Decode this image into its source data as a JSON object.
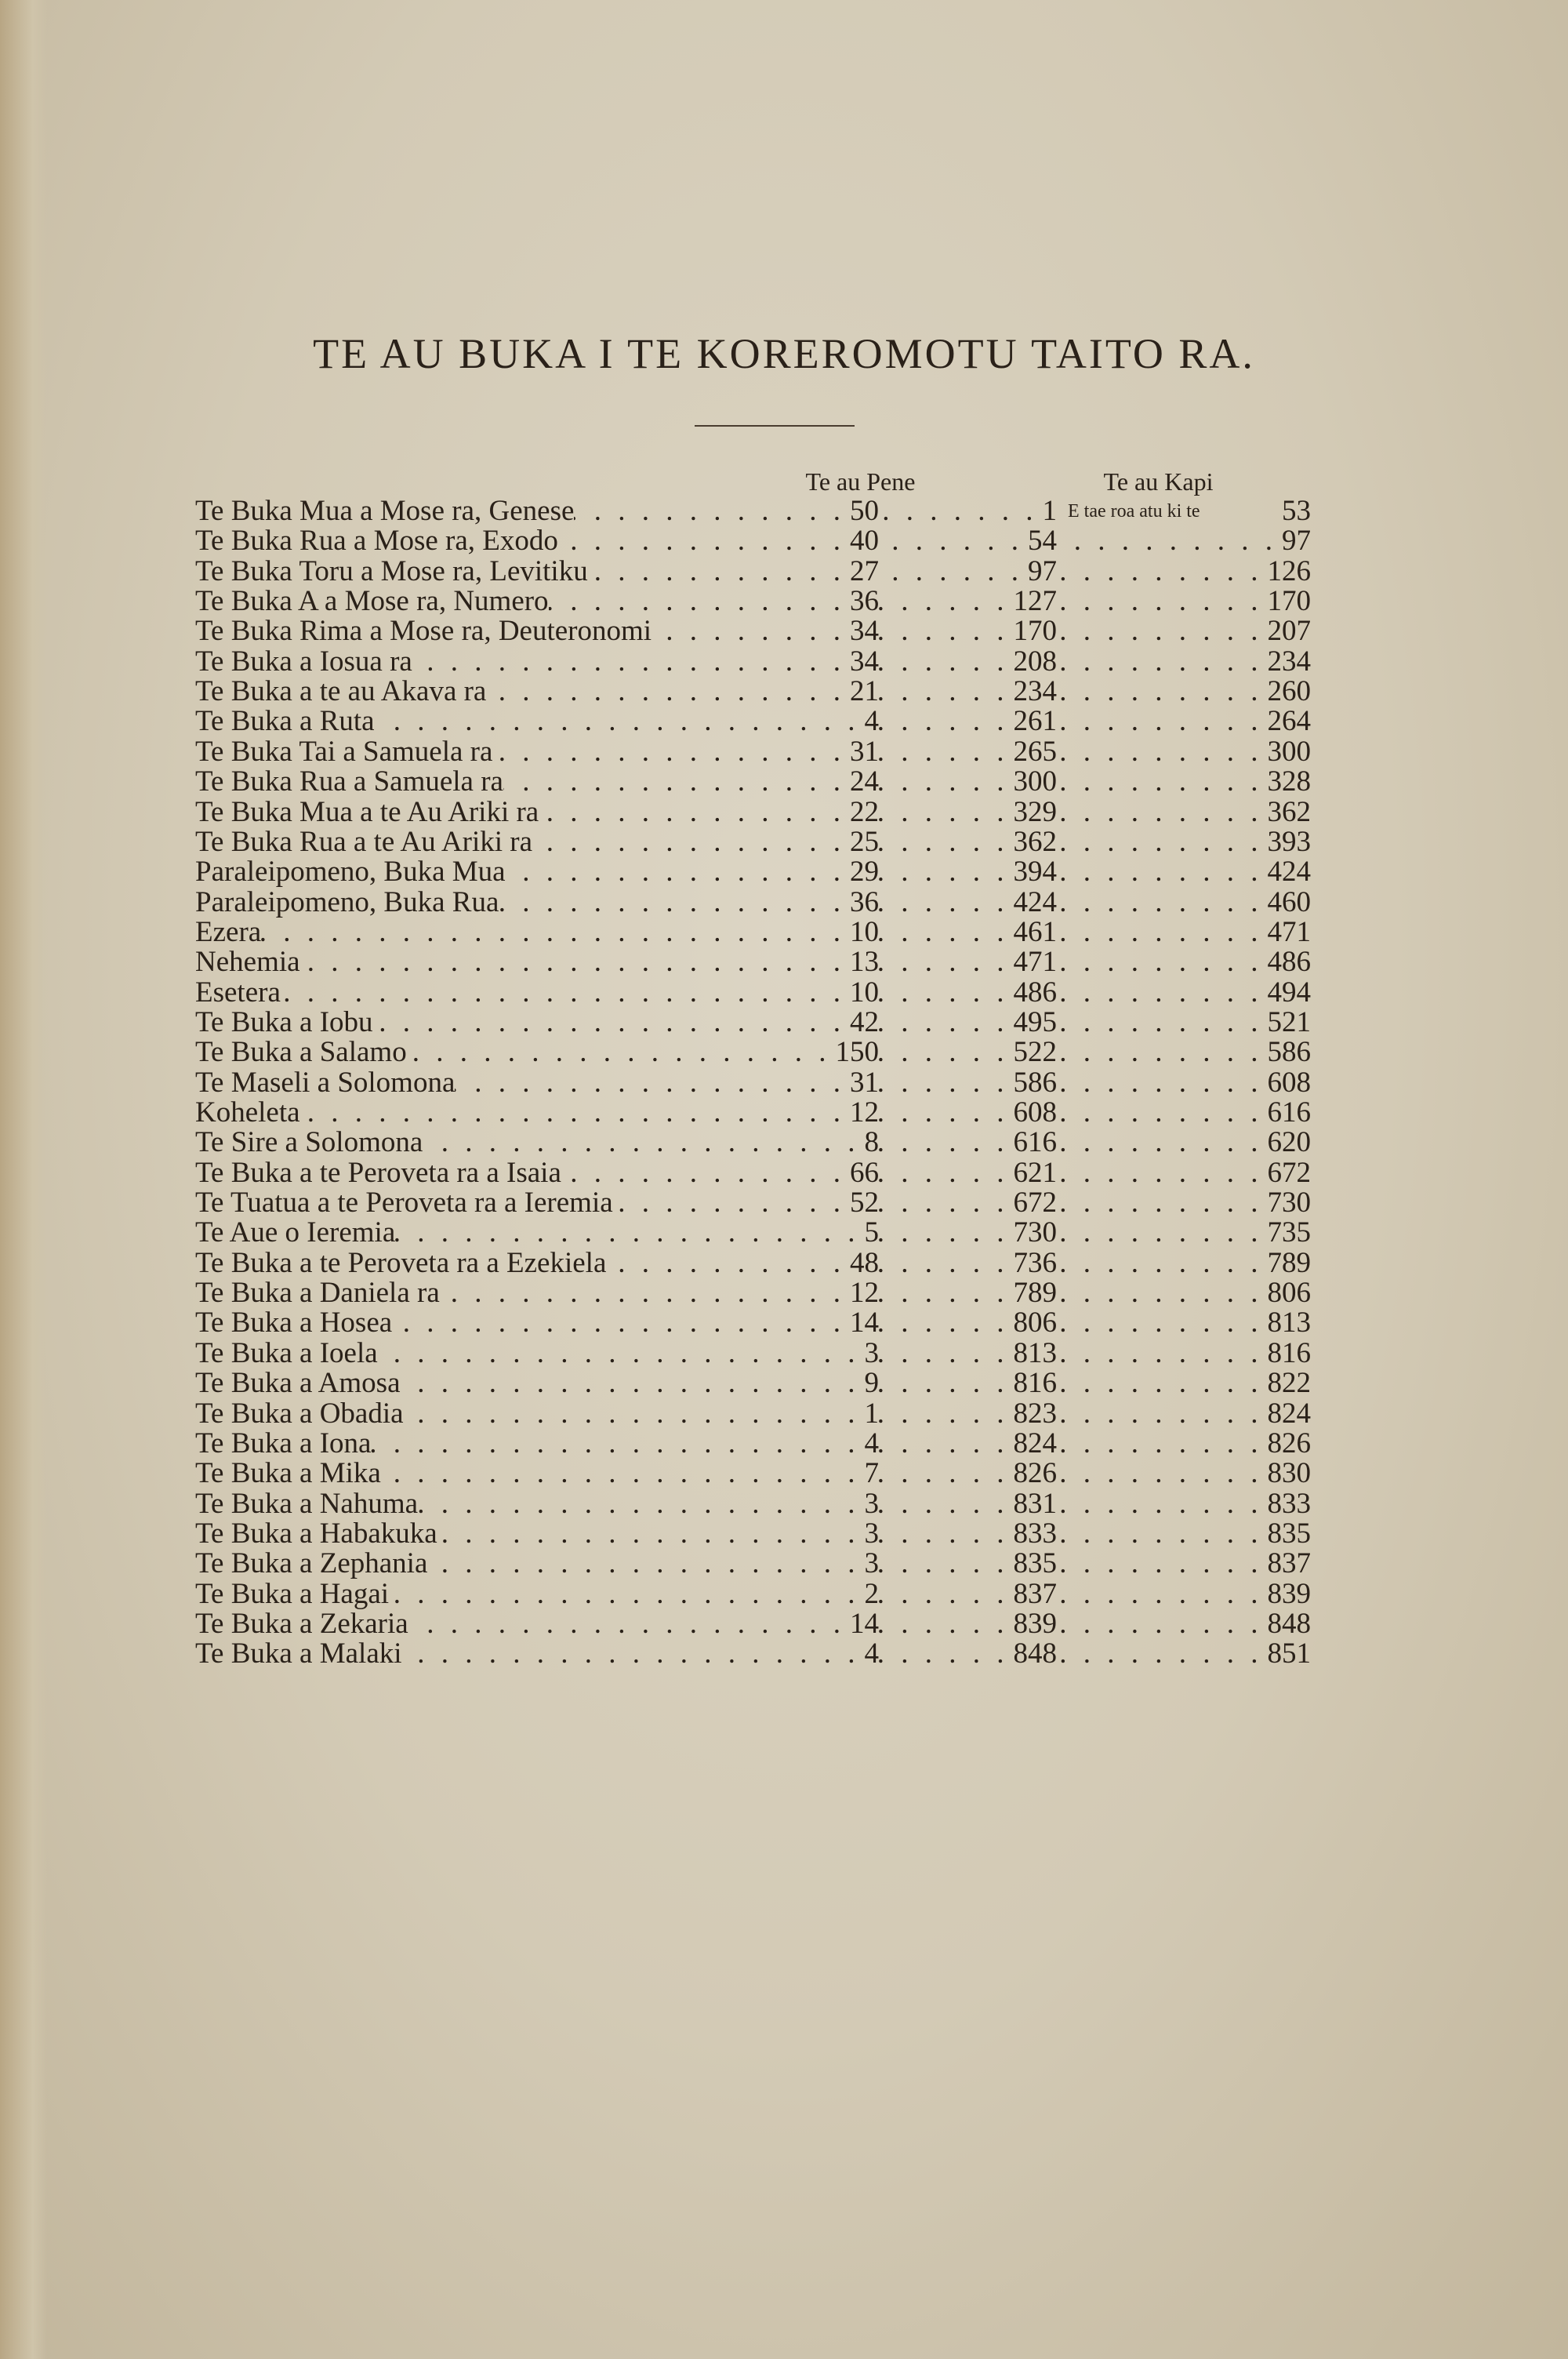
{
  "title": "TE AU BUKA I TE KOREROMOTU TAITO RA.",
  "headers": {
    "chapters": "Te au Pene",
    "pages": "Te au Kapi"
  },
  "first_row_note": "E tae roa atu ki te",
  "books": [
    {
      "name": "Te Buka Mua a Mose ra, Genese",
      "chapters": "50",
      "start": "1",
      "end": "53"
    },
    {
      "name": "Te Buka Rua a Mose ra, Exodo",
      "chapters": "40",
      "start": "54",
      "end": "97"
    },
    {
      "name": "Te Buka Toru a Mose ra, Levitiku",
      "chapters": "27",
      "start": "97",
      "end": "126"
    },
    {
      "name": "Te Buka A a Mose ra, Numero",
      "chapters": "36",
      "start": "127",
      "end": "170"
    },
    {
      "name": "Te Buka Rima a Mose ra, Deuteronomi",
      "chapters": "34",
      "start": "170",
      "end": "207"
    },
    {
      "name": "Te Buka a Iosua ra",
      "chapters": "34",
      "start": "208",
      "end": "234"
    },
    {
      "name": "Te Buka a te au Akava ra",
      "chapters": "21",
      "start": "234",
      "end": "260"
    },
    {
      "name": "Te Buka a Ruta",
      "chapters": "4",
      "start": "261",
      "end": "264"
    },
    {
      "name": "Te Buka Tai a Samuela ra",
      "chapters": "31",
      "start": "265",
      "end": "300"
    },
    {
      "name": "Te Buka Rua a Samuela ra",
      "chapters": "24",
      "start": "300",
      "end": "328"
    },
    {
      "name": "Te Buka Mua a te Au Ariki ra",
      "chapters": "22",
      "start": "329",
      "end": "362"
    },
    {
      "name": "Te Buka Rua a te Au Ariki ra",
      "chapters": "25",
      "start": "362",
      "end": "393"
    },
    {
      "name": "Paraleipomeno, Buka Mua",
      "chapters": "29",
      "start": "394",
      "end": "424"
    },
    {
      "name": "Paraleipomeno, Buka Rua",
      "chapters": "36",
      "start": "424",
      "end": "460"
    },
    {
      "name": "Ezera",
      "chapters": "10",
      "start": "461",
      "end": "471"
    },
    {
      "name": "Nehemia",
      "chapters": "13",
      "start": "471",
      "end": "486"
    },
    {
      "name": "Esetera",
      "chapters": "10",
      "start": "486",
      "end": "494"
    },
    {
      "name": "Te Buka a Iobu",
      "chapters": "42",
      "start": "495",
      "end": "521"
    },
    {
      "name": "Te Buka a Salamo",
      "chapters": "150",
      "start": "522",
      "end": "586"
    },
    {
      "name": "Te Maseli a Solomona",
      "chapters": "31",
      "start": "586",
      "end": "608"
    },
    {
      "name": "Koheleta",
      "chapters": "12",
      "start": "608",
      "end": "616"
    },
    {
      "name": "Te Sire a Solomona",
      "chapters": "8",
      "start": "616",
      "end": "620"
    },
    {
      "name": "Te Buka a te Peroveta ra a Isaia",
      "chapters": "66",
      "start": "621",
      "end": "672"
    },
    {
      "name": "Te Tuatua a te Peroveta ra a Ieremia",
      "chapters": "52",
      "start": "672",
      "end": "730"
    },
    {
      "name": "Te Aue o Ieremia",
      "chapters": "5",
      "start": "730",
      "end": "735"
    },
    {
      "name": "Te Buka a te Peroveta ra a Ezekiela",
      "chapters": "48",
      "start": "736",
      "end": "789"
    },
    {
      "name": "Te Buka a Daniela ra",
      "chapters": "12",
      "start": "789",
      "end": "806"
    },
    {
      "name": "Te Buka a Hosea",
      "chapters": "14",
      "start": "806",
      "end": "813"
    },
    {
      "name": "Te Buka a Ioela",
      "chapters": "3",
      "start": "813",
      "end": "816"
    },
    {
      "name": "Te Buka a Amosa",
      "chapters": "9",
      "start": "816",
      "end": "822"
    },
    {
      "name": "Te Buka a Obadia",
      "chapters": "1",
      "start": "823",
      "end": "824"
    },
    {
      "name": "Te Buka a Iona",
      "chapters": "4",
      "start": "824",
      "end": "826"
    },
    {
      "name": "Te Buka a Mika",
      "chapters": "7",
      "start": "826",
      "end": "830"
    },
    {
      "name": "Te Buka a Nahuma",
      "chapters": "3",
      "start": "831",
      "end": "833"
    },
    {
      "name": "Te Buka a Habakuka",
      "chapters": "3",
      "start": "833",
      "end": "835"
    },
    {
      "name": "Te Buka a Zephania",
      "chapters": "3",
      "start": "835",
      "end": "837"
    },
    {
      "name": "Te Buka a Hagai",
      "chapters": "2",
      "start": "837",
      "end": "839"
    },
    {
      "name": "Te Buka a Zekaria",
      "chapters": "14",
      "start": "839",
      "end": "848"
    },
    {
      "name": "Te Buka a Malaki",
      "chapters": "4",
      "start": "848",
      "end": "851"
    }
  ]
}
